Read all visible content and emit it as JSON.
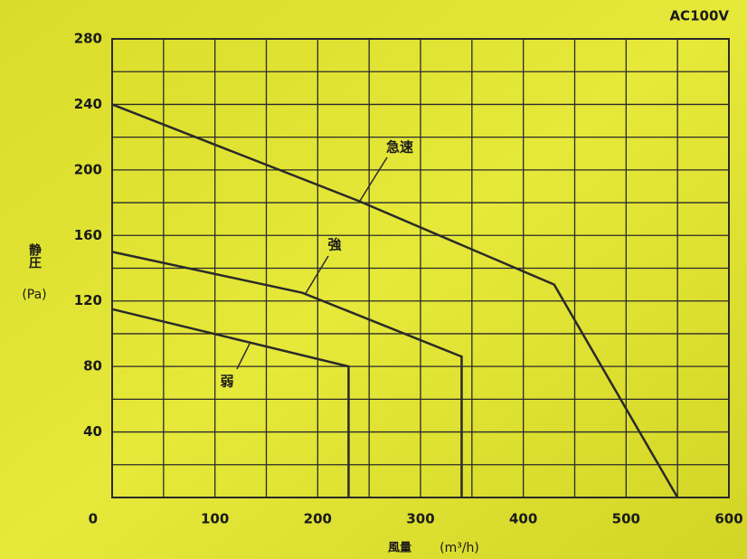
{
  "chart_data": {
    "type": "line",
    "title": "AC100V",
    "y_label": "静圧",
    "y_unit": "(Pa)",
    "x_label": "風量",
    "x_unit": "(m³/h)",
    "xlim": [
      0,
      600
    ],
    "ylim": [
      0,
      280
    ],
    "xticks": [
      0,
      100,
      200,
      300,
      400,
      500,
      600
    ],
    "yticks": [
      40,
      80,
      120,
      160,
      200,
      240,
      280
    ],
    "xminorticks": [
      50,
      150,
      250,
      350,
      450,
      550
    ],
    "yminorticks": [
      20,
      60,
      100,
      140,
      180,
      220,
      260
    ],
    "grid": true,
    "series": [
      {
        "name": "急速",
        "color": "#2a2a2a",
        "x": [
          0,
          240,
          430,
          550
        ],
        "values": [
          240,
          181,
          130,
          0
        ]
      },
      {
        "name": "強",
        "color": "#2a2a2a",
        "x": [
          0,
          185,
          340,
          340
        ],
        "values": [
          150,
          125,
          86,
          0
        ]
      },
      {
        "name": "弱",
        "color": "#2a2a2a",
        "x": [
          0,
          230,
          230
        ],
        "values": [
          115,
          80,
          0
        ]
      }
    ]
  }
}
